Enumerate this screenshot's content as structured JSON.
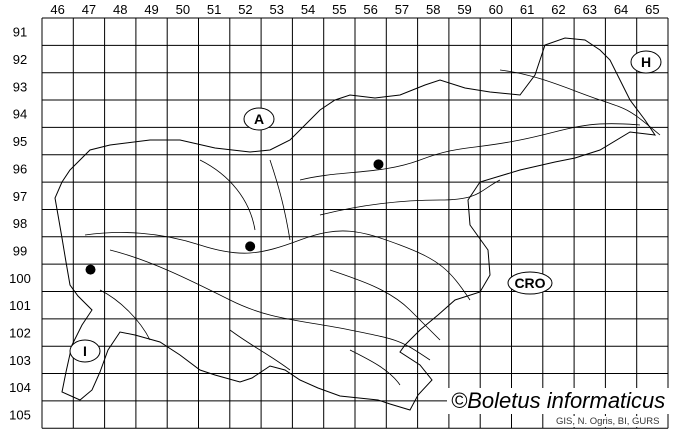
{
  "columns": [
    "46",
    "47",
    "48",
    "49",
    "50",
    "51",
    "52",
    "53",
    "54",
    "55",
    "56",
    "57",
    "58",
    "59",
    "60",
    "61",
    "62",
    "63",
    "64",
    "65"
  ],
  "rows": [
    "91",
    "92",
    "93",
    "94",
    "95",
    "96",
    "97",
    "98",
    "99",
    "100",
    "101",
    "102",
    "103",
    "104",
    "105"
  ],
  "country_labels": [
    {
      "text": "A",
      "name": "austria"
    },
    {
      "text": "H",
      "name": "hungary"
    },
    {
      "text": "CRO",
      "name": "croatia"
    },
    {
      "text": "I",
      "name": "italy"
    }
  ],
  "records": [
    {
      "column": "56",
      "row": "96"
    },
    {
      "column": "52",
      "row": "99"
    },
    {
      "column": "47",
      "row": "100"
    }
  ],
  "copyright": "©Boletus informaticus",
  "credit": "GIS, N. Ogris, BI, GURS",
  "colors": {
    "grid": "#000000",
    "dot": "#000000",
    "background": "#ffffff"
  }
}
